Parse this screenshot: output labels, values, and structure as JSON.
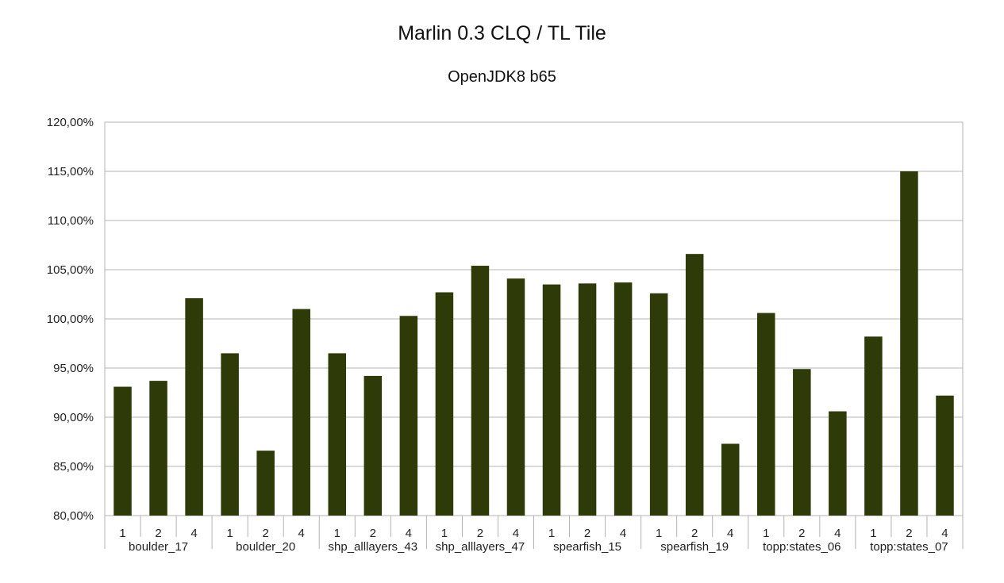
{
  "chart_data": {
    "type": "bar",
    "title": "Marlin 0.3 CLQ / TL Tile",
    "subtitle": "OpenJDK8 b65",
    "ylim": [
      80,
      120
    ],
    "yticks": [
      "80,00%",
      "85,00%",
      "90,00%",
      "95,00%",
      "100,00%",
      "105,00%",
      "110,00%",
      "115,00%",
      "120,00%"
    ],
    "grid": true,
    "bar_color": "#2e3b08",
    "groups": [
      {
        "name": "boulder_17",
        "categories": [
          "1",
          "2",
          "4"
        ],
        "values": [
          93.1,
          93.7,
          102.1
        ]
      },
      {
        "name": "boulder_20",
        "categories": [
          "1",
          "2",
          "4"
        ],
        "values": [
          96.5,
          86.6,
          101.0
        ]
      },
      {
        "name": "shp_alllayers_43",
        "categories": [
          "1",
          "2",
          "4"
        ],
        "values": [
          96.5,
          94.2,
          100.3
        ]
      },
      {
        "name": "shp_alllayers_47",
        "categories": [
          "1",
          "2",
          "4"
        ],
        "values": [
          102.7,
          105.4,
          104.1
        ]
      },
      {
        "name": "spearfish_15",
        "categories": [
          "1",
          "2",
          "4"
        ],
        "values": [
          103.5,
          103.6,
          103.7
        ]
      },
      {
        "name": "spearfish_19",
        "categories": [
          "1",
          "2",
          "4"
        ],
        "values": [
          102.6,
          106.6,
          87.3
        ]
      },
      {
        "name": "topp:states_06",
        "categories": [
          "1",
          "2",
          "4"
        ],
        "values": [
          100.6,
          94.9,
          90.6
        ]
      },
      {
        "name": "topp:states_07",
        "categories": [
          "1",
          "2",
          "4"
        ],
        "values": [
          98.2,
          115.0,
          92.2
        ]
      }
    ]
  }
}
